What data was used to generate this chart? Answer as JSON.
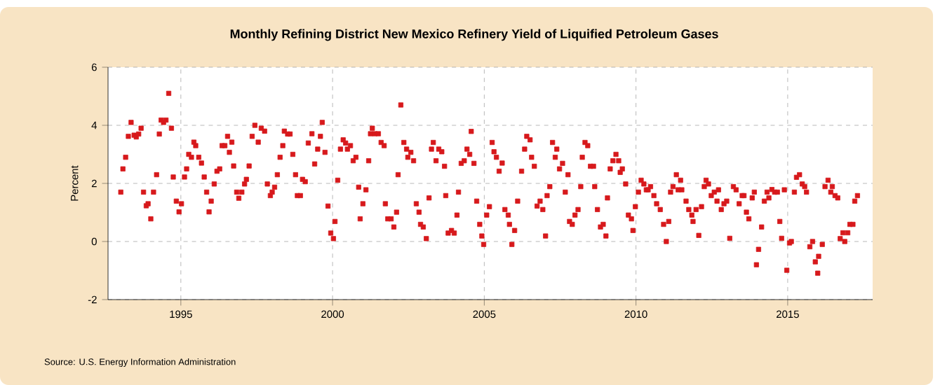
{
  "chart_data": {
    "type": "scatter",
    "title": "Monthly Refining District New Mexico Refinery Yield of Liquified Petroleum Gases",
    "ylabel": "Percent",
    "annotations": [
      "Source: U.S. Energy Information Administration"
    ],
    "marker": "square",
    "color": "#d7191c",
    "grid": true,
    "xlim": [
      1992.6,
      2017.8
    ],
    "xticks": [
      1995,
      2000,
      2005,
      2010,
      2015
    ],
    "ylim": [
      -2,
      6
    ],
    "yticks": [
      -2,
      0,
      2,
      4,
      6
    ],
    "x": [
      1993.02,
      1993.09,
      1993.18,
      1993.27,
      1993.36,
      1993.46,
      1993.53,
      1993.61,
      1993.69,
      1993.77,
      1993.86,
      1993.92,
      1994.01,
      1994.1,
      1994.2,
      1994.29,
      1994.35,
      1994.43,
      1994.51,
      1994.6,
      1994.69,
      1994.75,
      1994.85,
      1994.94,
      1995.02,
      1995.12,
      1995.19,
      1995.26,
      1995.35,
      1995.43,
      1995.49,
      1995.59,
      1995.68,
      1995.77,
      1995.85,
      1995.93,
      1996.0,
      1996.1,
      1996.19,
      1996.28,
      1996.36,
      1996.45,
      1996.54,
      1996.6,
      1996.68,
      1996.74,
      1996.84,
      1996.91,
      1997.01,
      1997.1,
      1997.16,
      1997.25,
      1997.35,
      1997.44,
      1997.55,
      1997.65,
      1997.76,
      1997.85,
      1997.95,
      1998.01,
      1998.09,
      1998.18,
      1998.27,
      1998.36,
      1998.41,
      1998.52,
      1998.6,
      1998.69,
      1998.78,
      1998.84,
      1998.94,
      1999.01,
      1999.1,
      1999.2,
      1999.32,
      1999.41,
      1999.51,
      1999.6,
      1999.66,
      1999.75,
      1999.85,
      1999.94,
      2000.03,
      2000.08,
      2000.17,
      2000.26,
      2000.35,
      2000.43,
      2000.49,
      2000.59,
      2000.68,
      2000.77,
      2000.86,
      2000.91,
      2001.0,
      2001.1,
      2001.19,
      2001.25,
      2001.31,
      2001.39,
      2001.51,
      2001.6,
      2001.7,
      2001.74,
      2001.82,
      2001.93,
      2002.02,
      2002.11,
      2002.16,
      2002.25,
      2002.35,
      2002.44,
      2002.48,
      2002.58,
      2002.67,
      2002.76,
      2002.85,
      2002.9,
      2002.99,
      2003.09,
      2003.18,
      2003.26,
      2003.32,
      2003.41,
      2003.5,
      2003.6,
      2003.69,
      2003.73,
      2003.81,
      2003.92,
      2004.01,
      2004.1,
      2004.15,
      2004.24,
      2004.34,
      2004.43,
      2004.52,
      2004.57,
      2004.66,
      2004.75,
      2004.85,
      2004.92,
      2004.98,
      2005.08,
      2005.17,
      2005.26,
      2005.32,
      2005.4,
      2005.49,
      2005.59,
      2005.68,
      2005.79,
      2005.83,
      2005.91,
      2006.0,
      2006.1,
      2006.23,
      2006.33,
      2006.4,
      2006.51,
      2006.56,
      2006.65,
      2006.74,
      2006.84,
      2006.93,
      2007.02,
      2007.07,
      2007.16,
      2007.25,
      2007.34,
      2007.39,
      2007.48,
      2007.58,
      2007.67,
      2007.76,
      2007.81,
      2007.9,
      2007.99,
      2008.09,
      2008.18,
      2008.23,
      2008.32,
      2008.41,
      2008.5,
      2008.6,
      2008.64,
      2008.73,
      2008.83,
      2008.92,
      2009.01,
      2009.06,
      2009.15,
      2009.24,
      2009.34,
      2009.43,
      2009.48,
      2009.55,
      2009.66,
      2009.75,
      2009.85,
      2009.9,
      2009.98,
      2010.08,
      2010.17,
      2010.26,
      2010.34,
      2010.4,
      2010.48,
      2010.59,
      2010.68,
      2010.8,
      2010.91,
      2011.0,
      2011.08,
      2011.14,
      2011.22,
      2011.33,
      2011.39,
      2011.47,
      2011.51,
      2011.65,
      2011.74,
      2011.84,
      2011.88,
      2011.98,
      2012.07,
      2012.16,
      2012.25,
      2012.31,
      2012.39,
      2012.48,
      2012.58,
      2012.67,
      2012.72,
      2012.81,
      2012.9,
      2012.99,
      2013.09,
      2013.21,
      2013.3,
      2013.4,
      2013.5,
      2013.56,
      2013.64,
      2013.72,
      2013.83,
      2013.9,
      2013.97,
      2014.04,
      2014.14,
      2014.23,
      2014.32,
      2014.38,
      2014.48,
      2014.57,
      2014.66,
      2014.74,
      2014.8,
      2014.89,
      2014.97,
      2015.06,
      2015.12,
      2015.22,
      2015.29,
      2015.39,
      2015.48,
      2015.56,
      2015.62,
      2015.73,
      2015.82,
      2015.91,
      2015.99,
      2016.02,
      2016.14,
      2016.23,
      2016.33,
      2016.42,
      2016.47,
      2016.56,
      2016.65,
      2016.73,
      2016.82,
      2016.88,
      2016.98,
      2017.05,
      2017.15,
      2017.21,
      2017.3
    ],
    "values": [
      1.7,
      2.5,
      2.9,
      3.62,
      4.1,
      3.66,
      3.6,
      3.7,
      3.9,
      1.7,
      1.23,
      1.3,
      0.78,
      1.7,
      2.3,
      3.7,
      4.18,
      4.1,
      4.18,
      5.1,
      3.9,
      2.22,
      1.39,
      1.02,
      1.3,
      2.22,
      2.5,
      3.0,
      2.9,
      3.42,
      3.3,
      2.9,
      2.7,
      2.22,
      1.7,
      1.02,
      1.39,
      1.98,
      2.42,
      2.5,
      3.3,
      3.3,
      3.62,
      3.07,
      3.42,
      2.6,
      1.7,
      1.49,
      1.7,
      1.98,
      2.14,
      2.6,
      3.62,
      4.0,
      3.42,
      3.9,
      3.8,
      1.98,
      1.58,
      1.7,
      1.87,
      2.3,
      2.9,
      3.3,
      3.8,
      3.7,
      3.7,
      3.0,
      2.3,
      1.58,
      1.58,
      2.14,
      2.06,
      3.39,
      3.71,
      2.67,
      3.18,
      3.62,
      4.1,
      3.07,
      1.22,
      0.29,
      0.1,
      0.69,
      2.11,
      3.18,
      3.5,
      3.39,
      3.18,
      3.3,
      2.78,
      2.9,
      1.87,
      0.78,
      1.3,
      1.78,
      2.78,
      3.71,
      3.9,
      3.71,
      3.71,
      3.41,
      3.3,
      1.3,
      0.78,
      0.78,
      0.5,
      1.01,
      2.3,
      4.7,
      3.41,
      3.18,
      2.9,
      3.07,
      2.78,
      1.3,
      1.01,
      0.59,
      0.5,
      0.1,
      1.5,
      3.18,
      3.41,
      2.78,
      3.18,
      3.09,
      2.59,
      1.58,
      0.29,
      0.38,
      0.29,
      0.91,
      1.7,
      2.69,
      2.78,
      3.18,
      3.0,
      3.79,
      2.69,
      1.39,
      0.59,
      0.19,
      -0.1,
      0.91,
      1.2,
      3.41,
      3.09,
      2.9,
      2.42,
      2.7,
      1.1,
      0.91,
      0.59,
      -0.1,
      0.38,
      1.39,
      2.42,
      3.18,
      3.62,
      3.5,
      2.9,
      2.59,
      1.22,
      1.39,
      1.1,
      0.19,
      1.58,
      1.89,
      3.41,
      2.9,
      3.18,
      2.5,
      2.69,
      1.7,
      2.3,
      0.69,
      0.59,
      0.91,
      1.1,
      1.89,
      2.9,
      3.41,
      3.3,
      2.59,
      2.59,
      1.89,
      1.1,
      0.5,
      0.59,
      0.19,
      1.5,
      2.5,
      2.78,
      3.0,
      2.78,
      2.38,
      2.5,
      1.98,
      0.91,
      0.78,
      0.38,
      1.2,
      1.7,
      2.11,
      1.98,
      1.78,
      1.78,
      1.89,
      1.58,
      1.3,
      1.1,
      0.59,
      0.0,
      0.69,
      1.7,
      1.89,
      2.3,
      1.78,
      2.11,
      1.78,
      1.39,
      1.1,
      0.91,
      0.69,
      1.1,
      0.21,
      1.2,
      1.89,
      2.11,
      1.98,
      1.58,
      1.7,
      1.39,
      1.78,
      1.1,
      1.3,
      1.39,
      0.11,
      1.89,
      1.78,
      1.3,
      1.58,
      1.58,
      1.01,
      0.78,
      1.5,
      1.7,
      -0.8,
      -0.27,
      0.5,
      1.39,
      1.7,
      1.5,
      1.79,
      1.7,
      1.7,
      0.69,
      0.11,
      1.78,
      -0.99,
      -0.05,
      0.0,
      1.7,
      2.21,
      2.3,
      1.98,
      1.89,
      1.7,
      -0.18,
      0.0,
      -0.7,
      -1.09,
      -0.51,
      -0.1,
      1.89,
      2.11,
      1.7,
      1.89,
      1.58,
      1.5,
      0.1,
      0.3,
      0.0,
      0.3,
      0.59,
      0.59,
      1.39,
      1.58
    ]
  }
}
